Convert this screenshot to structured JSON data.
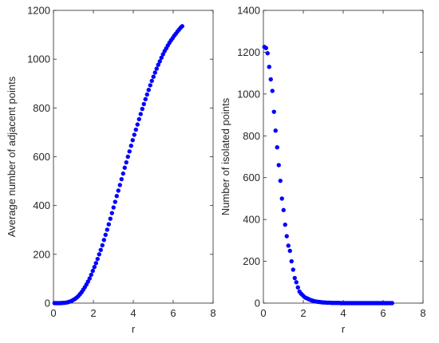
{
  "chart_data": [
    {
      "type": "scatter",
      "xlabel": "r",
      "ylabel": "Average number of adjacent points",
      "xlim": [
        0,
        8
      ],
      "ylim": [
        0,
        1200
      ],
      "xticks": [
        "0",
        "2",
        "4",
        "6",
        "8"
      ],
      "yticks": [
        "0",
        "200",
        "400",
        "600",
        "800",
        "1000",
        "1200"
      ],
      "grid": false,
      "marker_color": "#0000ff",
      "series": [
        {
          "x": [
            0.05,
            0.13,
            0.21,
            0.29,
            0.37,
            0.45,
            0.53,
            0.61,
            0.69,
            0.77,
            0.85,
            0.93,
            1.01,
            1.09,
            1.17,
            1.25,
            1.33,
            1.41,
            1.49,
            1.57,
            1.65,
            1.73,
            1.81,
            1.89,
            1.97,
            2.05,
            2.13,
            2.21,
            2.29,
            2.37,
            2.45,
            2.53,
            2.61,
            2.69,
            2.77,
            2.85,
            2.93,
            3.01,
            3.09,
            3.17,
            3.25,
            3.33,
            3.41,
            3.49,
            3.57,
            3.65,
            3.73,
            3.81,
            3.89,
            3.97,
            4.05,
            4.13,
            4.21,
            4.29,
            4.37,
            4.45,
            4.53,
            4.61,
            4.69,
            4.77,
            4.85,
            4.93,
            5.01,
            5.09,
            5.17,
            5.25,
            5.33,
            5.41,
            5.49,
            5.57,
            5.65,
            5.73,
            5.81,
            5.89,
            5.97,
            6.05,
            6.13,
            6.21,
            6.29,
            6.37,
            6.45
          ],
          "y": [
            0,
            0,
            0,
            0,
            0,
            1,
            1,
            2,
            3,
            5,
            7,
            10,
            14,
            18,
            23,
            29,
            37,
            45,
            55,
            65,
            76,
            88,
            101,
            116,
            132,
            148,
            164,
            181,
            200,
            218,
            237,
            259,
            280,
            301,
            323,
            346,
            369,
            392,
            415,
            439,
            461,
            484,
            508,
            531,
            555,
            577,
            600,
            622,
            645,
            668,
            690,
            711,
            732,
            754,
            775,
            796,
            816,
            836,
            855,
            874,
            893,
            911,
            928,
            945,
            961,
            977,
            991,
            1006,
            1020,
            1033,
            1044,
            1056,
            1067,
            1077,
            1086,
            1096,
            1104,
            1113,
            1121,
            1129,
            1135
          ]
        }
      ]
    },
    {
      "type": "scatter",
      "xlabel": "r",
      "ylabel": "Number of isolated points",
      "xlim": [
        0,
        8
      ],
      "ylim": [
        0,
        1400
      ],
      "xticks": [
        "0",
        "2",
        "4",
        "6",
        "8"
      ],
      "yticks": [
        "0",
        "200",
        "400",
        "600",
        "800",
        "1000",
        "1200",
        "1400"
      ],
      "grid": false,
      "marker_color": "#0000ff",
      "series": [
        {
          "x": [
            0.05,
            0.13,
            0.21,
            0.29,
            0.37,
            0.45,
            0.53,
            0.61,
            0.69,
            0.77,
            0.85,
            0.93,
            1.01,
            1.09,
            1.17,
            1.25,
            1.33,
            1.41,
            1.49,
            1.57,
            1.65,
            1.73,
            1.81,
            1.89,
            1.97,
            2.05,
            2.13,
            2.21,
            2.29,
            2.37,
            2.45,
            2.53,
            2.61,
            2.69,
            2.77,
            2.85,
            2.93,
            3.01,
            3.09,
            3.17,
            3.25,
            3.33,
            3.41,
            3.49,
            3.57,
            3.65,
            3.73,
            3.81,
            3.89,
            3.97,
            4.05,
            4.13,
            4.21,
            4.29,
            4.37,
            4.45,
            4.53,
            4.61,
            4.69,
            4.77,
            4.85,
            4.93,
            5.01,
            5.09,
            5.17,
            5.25,
            5.33,
            5.41,
            5.49,
            5.57,
            5.65,
            5.73,
            5.81,
            5.89,
            5.97,
            6.05,
            6.13,
            6.21,
            6.29,
            6.37,
            6.45
          ],
          "y": [
            1225,
            1220,
            1195,
            1130,
            1070,
            1015,
            915,
            825,
            745,
            660,
            585,
            500,
            445,
            375,
            320,
            275,
            250,
            200,
            160,
            120,
            100,
            75,
            55,
            45,
            38,
            30,
            25,
            22,
            18,
            15,
            12,
            10,
            8,
            7,
            6,
            5,
            4,
            3,
            3,
            2,
            2,
            2,
            1,
            1,
            1,
            1,
            1,
            1,
            0,
            0,
            0,
            0,
            0,
            0,
            0,
            0,
            0,
            0,
            0,
            0,
            0,
            0,
            0,
            0,
            0,
            0,
            0,
            0,
            0,
            0,
            0,
            0,
            0,
            0,
            0,
            0,
            0,
            0,
            0,
            0,
            0
          ]
        }
      ]
    }
  ]
}
